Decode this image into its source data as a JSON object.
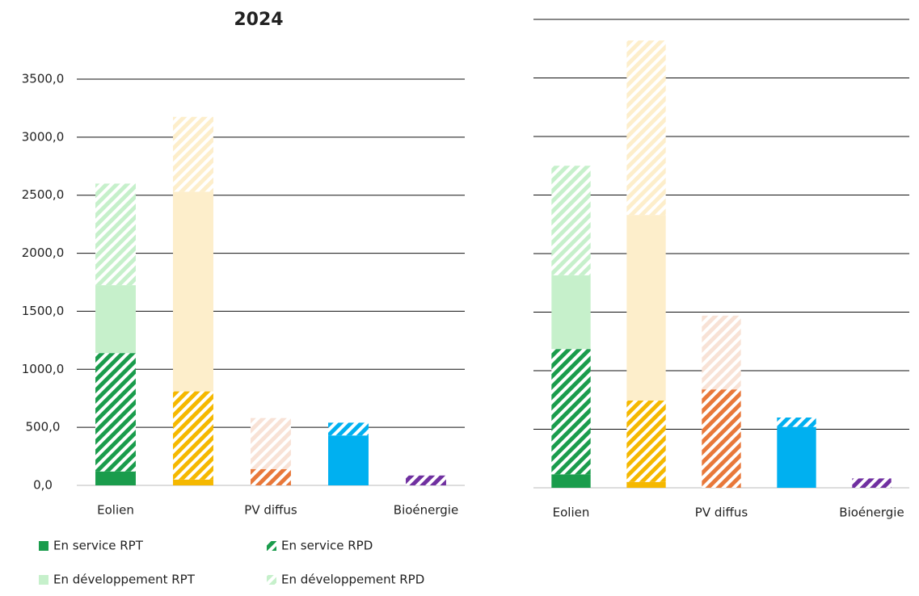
{
  "chart_data": [
    {
      "type": "bar",
      "stacked": true,
      "title": "2024",
      "categories": [
        "Eolien",
        null,
        "PV diffus",
        null,
        "Bioénergie"
      ],
      "category_colors": [
        "#1a9c4c",
        "#f5b800",
        "#e8783a",
        "#00b0f0",
        "#7030a0"
      ],
      "category_light_colors": [
        "#c6f0cb",
        "#fdeecb",
        "#f8e2d6",
        "#cdeefb",
        "#e6d6f0"
      ],
      "series": [
        {
          "name": "En service RPT",
          "fill": "solid",
          "shade": "dark",
          "color": "#1a9c4c",
          "values": [
            120,
            50,
            0,
            430,
            0
          ]
        },
        {
          "name": "En service RPD",
          "fill": "hatch",
          "shade": "dark",
          "color": "#1a9c4c",
          "values": [
            1020,
            760,
            140,
            110,
            85
          ]
        },
        {
          "name": "En développement RPT",
          "fill": "solid",
          "shade": "light",
          "color": "#c6f0cb",
          "values": [
            585,
            1720,
            0,
            0,
            0
          ]
        },
        {
          "name": "En développement RPD",
          "fill": "hatch",
          "shade": "light",
          "color": "#c6f0cb",
          "values": [
            875,
            645,
            440,
            0,
            0
          ]
        }
      ],
      "ylim": [
        0,
        3500
      ],
      "yticks": [
        {
          "value": 0,
          "label": "0,0"
        },
        {
          "value": 500,
          "label": "500,0"
        },
        {
          "value": 1000,
          "label": "1000,0"
        },
        {
          "value": 1500,
          "label": "1500,0"
        },
        {
          "value": 2000,
          "label": "2000,0"
        },
        {
          "value": 2500,
          "label": "2500,0"
        },
        {
          "value": 3000,
          "label": "3000,0"
        },
        {
          "value": 3500,
          "label": "3500,0"
        }
      ],
      "tick_labels": true,
      "grid": true,
      "legend": "bottom"
    },
    {
      "type": "bar",
      "stacked": true,
      "categories": [
        "Eolien",
        null,
        "PV diffus",
        null,
        "Bioénergie"
      ],
      "category_colors": [
        "#1a9c4c",
        "#f5b800",
        "#e8783a",
        "#00b0f0",
        "#7030a0"
      ],
      "category_light_colors": [
        "#c6f0cb",
        "#fdeecb",
        "#f8e2d6",
        "#cdeefb",
        "#e6d6f0"
      ],
      "series": [
        {
          "fill": "solid",
          "shade": "dark",
          "values": [
            115,
            50,
            0,
            520,
            0
          ]
        },
        {
          "fill": "hatch",
          "shade": "dark",
          "values": [
            1070,
            695,
            840,
            80,
            80
          ]
        },
        {
          "fill": "solid",
          "shade": "light",
          "values": [
            630,
            1585,
            0,
            0,
            0
          ]
        },
        {
          "fill": "hatch",
          "shade": "light",
          "values": [
            935,
            1490,
            630,
            0,
            0
          ]
        }
      ],
      "ylim": [
        0,
        4000
      ],
      "yticks": [
        0,
        500,
        1000,
        1500,
        2000,
        2500,
        3000,
        3500,
        4000
      ],
      "tick_labels": false,
      "grid": true
    }
  ]
}
